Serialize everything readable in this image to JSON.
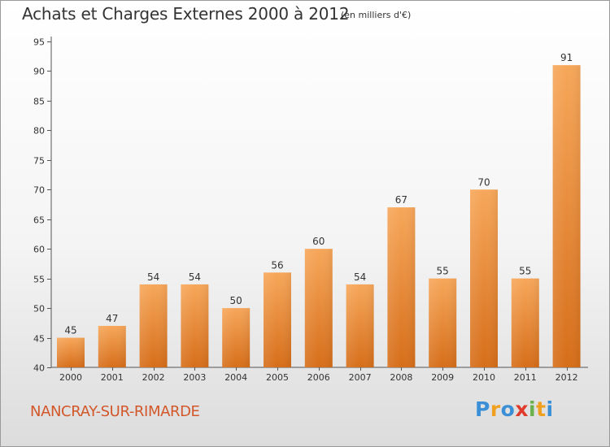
{
  "chart_data": {
    "type": "bar",
    "title": "Achats et Charges Externes 2000 à 2012",
    "subtitle": "(en milliers d'€)",
    "categories": [
      "2000",
      "2001",
      "2002",
      "2003",
      "2004",
      "2005",
      "2006",
      "2007",
      "2008",
      "2009",
      "2010",
      "2011",
      "2012"
    ],
    "values": [
      45,
      47,
      54,
      54,
      50,
      56,
      60,
      54,
      67,
      55,
      70,
      55,
      91
    ],
    "ylim": [
      40,
      95
    ],
    "yticks": [
      40,
      45,
      50,
      55,
      60,
      65,
      70,
      75,
      80,
      85,
      90,
      95
    ],
    "grid": false,
    "bar_color": "#f28c2a",
    "data_labels": true
  },
  "footer": {
    "location": "NANCRAY-SUR-RIMARDE",
    "location_color": "#d2572a",
    "logo": {
      "letters": [
        "P",
        "r",
        "o",
        "x",
        "i",
        "t",
        "i"
      ],
      "colors": [
        "#3a8fd6",
        "#f0a020",
        "#3a8fd6",
        "#e03a2a",
        "#6ab04c",
        "#f0a020",
        "#3a8fd6"
      ]
    }
  }
}
